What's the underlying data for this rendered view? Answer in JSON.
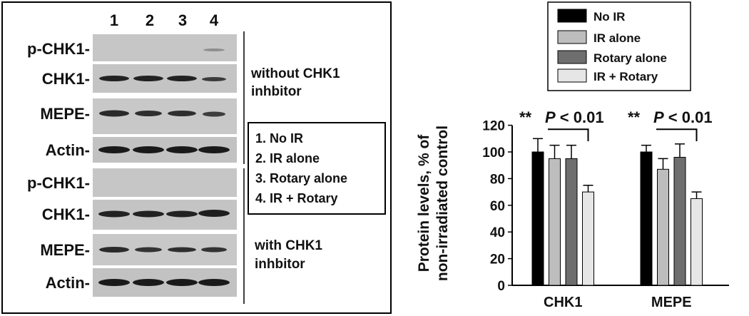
{
  "lanes": [
    "1",
    "2",
    "3",
    "4"
  ],
  "panel_top": {
    "rows": [
      {
        "label": "p-CHK1-",
        "key": "pchk1"
      },
      {
        "label": "CHK1-",
        "key": "chk1"
      },
      {
        "label": "MEPE-",
        "key": "mepe"
      },
      {
        "label": "Actin-",
        "key": "actin"
      }
    ],
    "note_line1": "without CHK1",
    "note_line2": "inhbitor"
  },
  "panel_bottom": {
    "rows": [
      {
        "label": "p-CHK1-",
        "key": "pchk1"
      },
      {
        "label": "CHK1-",
        "key": "chk1"
      },
      {
        "label": "MEPE-",
        "key": "mepe"
      },
      {
        "label": "Actin-",
        "key": "actin"
      }
    ],
    "note_line1": "with CHK1",
    "note_line2": "inhbitor"
  },
  "lane_key": [
    "1. No IR",
    "2. IR alone",
    "3. Rotary alone",
    "4. IR + Rotary"
  ],
  "chart_data": {
    "type": "bar",
    "categories": [
      "CHK1",
      "MEPE"
    ],
    "ylabel_line1": "Protein levels, % of",
    "ylabel_line2": "non-irradiated control",
    "ylim": [
      0,
      120
    ],
    "yticks": [
      0,
      20,
      40,
      60,
      80,
      100,
      120
    ],
    "series": [
      {
        "name": "No IR",
        "color": "#000000",
        "values": [
          100,
          100
        ],
        "errors": [
          10,
          5
        ]
      },
      {
        "name": "IR alone",
        "color": "#bdbdbd",
        "values": [
          95,
          87
        ],
        "errors": [
          10,
          8
        ]
      },
      {
        "name": "Rotary alone",
        "color": "#6e6e6e",
        "values": [
          95,
          96
        ],
        "errors": [
          10,
          10
        ]
      },
      {
        "name": "IR + Rotary",
        "color": "#e6e6e6",
        "values": [
          70,
          65
        ],
        "errors": [
          5,
          5
        ]
      }
    ],
    "annotations": [
      {
        "category": "CHK1",
        "stars": "**",
        "p": "P",
        "text": " < 0.01"
      },
      {
        "category": "MEPE",
        "stars": "**",
        "p": "P",
        "text": " < 0.01"
      }
    ],
    "legend_position": "top"
  }
}
